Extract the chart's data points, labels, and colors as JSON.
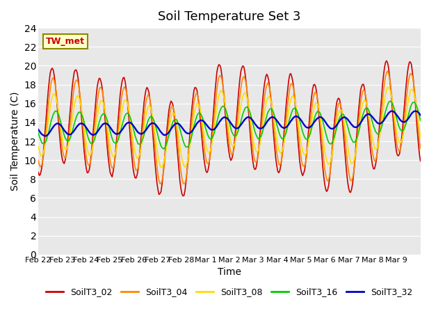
{
  "title": "Soil Temperature Set 3",
  "xlabel": "Time",
  "ylabel": "Soil Temperature (C)",
  "ylim": [
    0,
    24
  ],
  "annotation": "TW_met",
  "bg_color": "#e8e8e8",
  "fig_bg": "#ffffff",
  "colors": {
    "SoilT3_02": "#cc0000",
    "SoilT3_04": "#ff8800",
    "SoilT3_08": "#ffdd00",
    "SoilT3_16": "#00cc00",
    "SoilT3_32": "#0000cc"
  },
  "legend_labels": [
    "SoilT3_02",
    "SoilT3_04",
    "SoilT3_08",
    "SoilT3_16",
    "SoilT3_32"
  ],
  "x_tick_labels": [
    "Feb 22",
    "Feb 23",
    "Feb 24",
    "Feb 25",
    "Feb 26",
    "Feb 27",
    "Feb 28",
    "Mar 1",
    "Mar 2",
    "Mar 3",
    "Mar 4",
    "Mar 5",
    "Mar 6",
    "Mar 7",
    "Mar 8",
    "Mar 9"
  ],
  "num_days": 16,
  "start_day": 0
}
